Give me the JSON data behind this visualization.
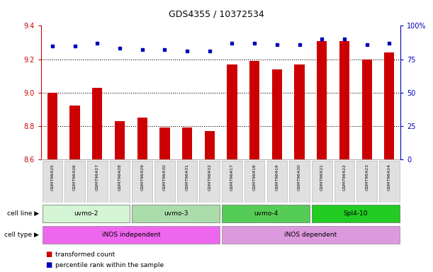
{
  "title": "GDS4355 / 10372534",
  "samples": [
    "GSM796425",
    "GSM796426",
    "GSM796427",
    "GSM796428",
    "GSM796429",
    "GSM796430",
    "GSM796431",
    "GSM796432",
    "GSM796417",
    "GSM796418",
    "GSM796419",
    "GSM796420",
    "GSM796421",
    "GSM796422",
    "GSM796423",
    "GSM796424"
  ],
  "transformed_count": [
    9.0,
    8.92,
    9.03,
    8.83,
    8.85,
    8.79,
    8.79,
    8.77,
    9.17,
    9.19,
    9.14,
    9.17,
    9.31,
    9.31,
    9.2,
    9.24
  ],
  "percentile_rank": [
    85,
    85,
    87,
    83,
    82,
    82,
    81,
    81,
    87,
    87,
    86,
    86,
    90,
    90,
    86,
    87
  ],
  "ylim_left": [
    8.6,
    9.4
  ],
  "ylim_right": [
    0,
    100
  ],
  "yticks_left": [
    8.6,
    8.8,
    9.0,
    9.2,
    9.4
  ],
  "yticks_right": [
    0,
    25,
    50,
    75,
    100
  ],
  "bar_color": "#cc0000",
  "dot_color": "#0000bb",
  "cell_lines": [
    {
      "label": "uvmo-2",
      "start": 0,
      "end": 3,
      "color": "#d4f5d4"
    },
    {
      "label": "uvmo-3",
      "start": 4,
      "end": 7,
      "color": "#aaddaa"
    },
    {
      "label": "uvmo-4",
      "start": 8,
      "end": 11,
      "color": "#55cc55"
    },
    {
      "label": "Spl4-10",
      "start": 12,
      "end": 15,
      "color": "#22cc22"
    }
  ],
  "cell_types": [
    {
      "label": "iNOS independent",
      "start": 0,
      "end": 7,
      "color": "#ee66ee"
    },
    {
      "label": "iNOS dependent",
      "start": 8,
      "end": 15,
      "color": "#dd99dd"
    }
  ],
  "cell_line_label": "cell line",
  "cell_type_label": "cell type",
  "legend_items": [
    "transformed count",
    "percentile rank within the sample"
  ],
  "legend_colors": [
    "#cc0000",
    "#0000bb"
  ],
  "background_color": "#ffffff",
  "tick_color_left": "#cc0000",
  "tick_color_right": "#0000bb",
  "sample_bg_color": "#d8d8d8",
  "grid_dotted_vals": [
    8.8,
    9.0,
    9.2
  ]
}
